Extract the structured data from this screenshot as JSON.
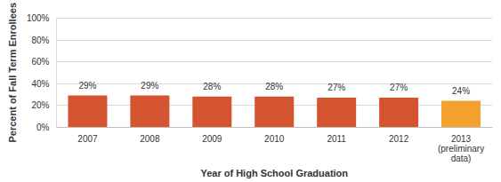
{
  "chart_data": {
    "type": "bar",
    "x_label": "Year of High School Graduation",
    "y_label": "Percent of Fall Term Enrollees",
    "categories": [
      "2007",
      "2008",
      "2009",
      "2010",
      "2011",
      "2012",
      "2013\n(preliminary\ndata)"
    ],
    "values": [
      29,
      29,
      28,
      28,
      27,
      27,
      24
    ],
    "value_labels": [
      "29%",
      "29%",
      "28%",
      "28%",
      "27%",
      "27%",
      "24%"
    ],
    "colors": [
      "#d4542f",
      "#d4542f",
      "#d4542f",
      "#d4542f",
      "#d4542f",
      "#d4542f",
      "#f4a12f"
    ],
    "ylim": [
      0,
      100
    ],
    "yticks": [
      {
        "value": 0,
        "label": "0%"
      },
      {
        "value": 20,
        "label": "20%"
      },
      {
        "value": 40,
        "label": "40%"
      },
      {
        "value": 60,
        "label": "60%"
      },
      {
        "value": 80,
        "label": "80%"
      },
      {
        "value": 100,
        "label": "100%"
      }
    ],
    "grid": true,
    "data_labels": true
  }
}
